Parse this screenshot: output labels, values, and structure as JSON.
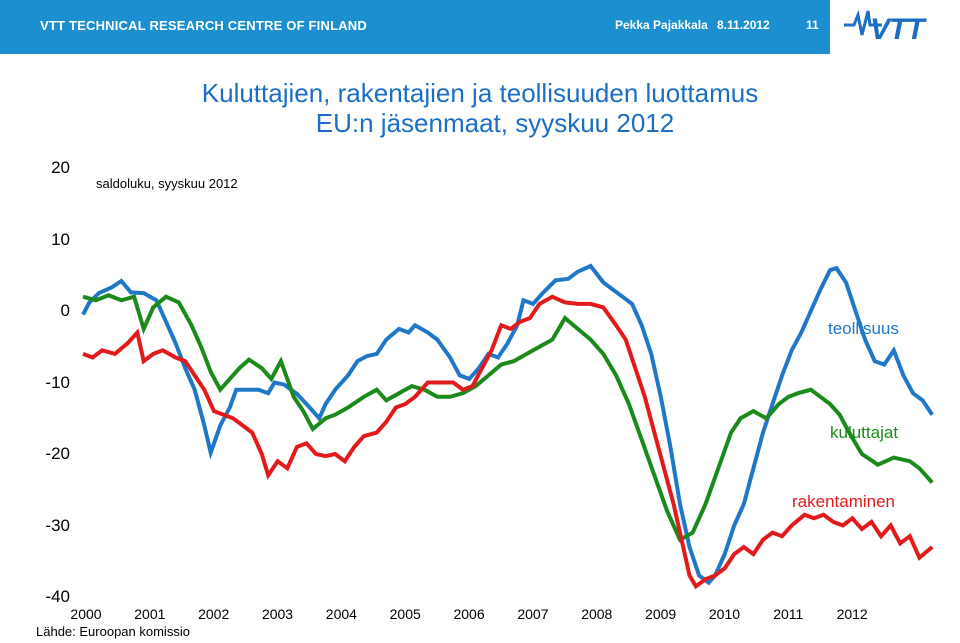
{
  "header": {
    "org": "VTT TECHNICAL RESEARCH CENTRE OF FINLAND",
    "author": "Pekka Pajakkala",
    "date": "8.11.2012",
    "slide_number": "11",
    "logo_text": "VTT",
    "bar_color": "#1b8fd0"
  },
  "title_line1": "Kuluttajien, rakentajien ja teollisuuden luottamus",
  "title_line2": "EU:n jäsenmaat, syyskuu 2012",
  "unit_label": "saldoluku, syyskuu 2012",
  "source": "Lähde: Euroopan komissio",
  "chart_data": {
    "type": "line",
    "title": "Kuluttajien, rakentajien ja teollisuuden luottamus EU:n jäsenmaat, syyskuu 2012",
    "ylabel": "saldoluku, syyskuu 2012",
    "ylim": [
      -40,
      20
    ],
    "yticks": [
      "20",
      "10",
      "0",
      "-10",
      "-20",
      "-30",
      "-40"
    ],
    "xticks": [
      "2000",
      "2001",
      "2002",
      "2003",
      "2004",
      "2005",
      "2006",
      "2007",
      "2008",
      "2009",
      "2010",
      "2011",
      "2012"
    ],
    "xlim": [
      2000,
      2013
    ],
    "grid": false,
    "series": [
      {
        "name": "teollisuus",
        "color": "#1f77c8",
        "points": [
          [
            2000.0,
            -0.5
          ],
          [
            2000.1,
            1.2
          ],
          [
            2000.25,
            2.5
          ],
          [
            2000.45,
            3.3
          ],
          [
            2000.6,
            4.2
          ],
          [
            2000.75,
            2.6
          ],
          [
            2000.95,
            2.5
          ],
          [
            2001.15,
            1.5
          ],
          [
            2001.3,
            -1.5
          ],
          [
            2001.45,
            -4.5
          ],
          [
            2001.6,
            -8
          ],
          [
            2001.75,
            -11
          ],
          [
            2001.9,
            -16
          ],
          [
            2002.0,
            -19.8
          ],
          [
            2002.15,
            -16
          ],
          [
            2002.3,
            -13.5
          ],
          [
            2002.4,
            -11
          ],
          [
            2002.6,
            -11
          ],
          [
            2002.75,
            -11
          ],
          [
            2002.9,
            -11.5
          ],
          [
            2003.0,
            -10
          ],
          [
            2003.15,
            -10.3
          ],
          [
            2003.35,
            -11.6
          ],
          [
            2003.55,
            -13.5
          ],
          [
            2003.7,
            -15
          ],
          [
            2003.8,
            -13
          ],
          [
            2003.95,
            -11
          ],
          [
            2004.15,
            -9
          ],
          [
            2004.3,
            -7
          ],
          [
            2004.45,
            -6.3
          ],
          [
            2004.6,
            -6
          ],
          [
            2004.75,
            -4
          ],
          [
            2004.95,
            -2.5
          ],
          [
            2005.1,
            -3
          ],
          [
            2005.2,
            -2
          ],
          [
            2005.4,
            -3
          ],
          [
            2005.55,
            -4
          ],
          [
            2005.75,
            -6.5
          ],
          [
            2005.9,
            -9
          ],
          [
            2006.05,
            -9.5
          ],
          [
            2006.2,
            -8
          ],
          [
            2006.35,
            -6
          ],
          [
            2006.5,
            -6.5
          ],
          [
            2006.65,
            -4.5
          ],
          [
            2006.8,
            -2
          ],
          [
            2006.9,
            1.5
          ],
          [
            2007.05,
            1
          ],
          [
            2007.2,
            2.5
          ],
          [
            2007.4,
            4.3
          ],
          [
            2007.6,
            4.5
          ],
          [
            2007.75,
            5.5
          ],
          [
            2007.95,
            6.3
          ],
          [
            2008.15,
            4
          ],
          [
            2008.3,
            3
          ],
          [
            2008.45,
            2
          ],
          [
            2008.6,
            1
          ],
          [
            2008.75,
            -2
          ],
          [
            2008.9,
            -6
          ],
          [
            2009.05,
            -12
          ],
          [
            2009.2,
            -19
          ],
          [
            2009.35,
            -27
          ],
          [
            2009.5,
            -33
          ],
          [
            2009.65,
            -37
          ],
          [
            2009.8,
            -38
          ],
          [
            2009.9,
            -37
          ],
          [
            2010.05,
            -34
          ],
          [
            2010.2,
            -30
          ],
          [
            2010.35,
            -27
          ],
          [
            2010.5,
            -22
          ],
          [
            2010.65,
            -17
          ],
          [
            2010.8,
            -13
          ],
          [
            2010.95,
            -9
          ],
          [
            2011.1,
            -5.5
          ],
          [
            2011.25,
            -3
          ],
          [
            2011.4,
            0
          ],
          [
            2011.55,
            3
          ],
          [
            2011.7,
            5.7
          ],
          [
            2011.8,
            6
          ],
          [
            2011.95,
            4
          ],
          [
            2012.1,
            0
          ],
          [
            2012.25,
            -4
          ],
          [
            2012.4,
            -7
          ],
          [
            2012.55,
            -7.5
          ],
          [
            2012.7,
            -5.5
          ],
          [
            2012.85,
            -9
          ],
          [
            2013.0,
            -11.5
          ],
          [
            2013.15,
            -12.5
          ],
          [
            2013.3,
            -14.5
          ]
        ]
      },
      {
        "name": "kuluttajat",
        "color": "#1a8a1a",
        "points": [
          [
            2000.0,
            2
          ],
          [
            2000.2,
            1.5
          ],
          [
            2000.4,
            2.2
          ],
          [
            2000.6,
            1.5
          ],
          [
            2000.8,
            2
          ],
          [
            2000.95,
            -2.5
          ],
          [
            2001.1,
            0.5
          ],
          [
            2001.3,
            2
          ],
          [
            2001.5,
            1.2
          ],
          [
            2001.7,
            -2
          ],
          [
            2001.85,
            -5
          ],
          [
            2002.0,
            -8.5
          ],
          [
            2002.15,
            -11
          ],
          [
            2002.3,
            -9.5
          ],
          [
            2002.45,
            -8
          ],
          [
            2002.6,
            -6.8
          ],
          [
            2002.8,
            -8
          ],
          [
            2002.95,
            -9.5
          ],
          [
            2003.1,
            -7
          ],
          [
            2003.3,
            -12
          ],
          [
            2003.45,
            -14
          ],
          [
            2003.6,
            -16.5
          ],
          [
            2003.8,
            -15
          ],
          [
            2003.95,
            -14.5
          ],
          [
            2004.15,
            -13.5
          ],
          [
            2004.4,
            -12
          ],
          [
            2004.6,
            -11
          ],
          [
            2004.75,
            -12.5
          ],
          [
            2004.95,
            -11.5
          ],
          [
            2005.15,
            -10.5
          ],
          [
            2005.35,
            -11
          ],
          [
            2005.55,
            -12
          ],
          [
            2005.75,
            -12
          ],
          [
            2005.95,
            -11.5
          ],
          [
            2006.15,
            -10.5
          ],
          [
            2006.35,
            -9
          ],
          [
            2006.55,
            -7.5
          ],
          [
            2006.75,
            -7
          ],
          [
            2006.95,
            -6
          ],
          [
            2007.15,
            -5
          ],
          [
            2007.35,
            -4
          ],
          [
            2007.55,
            -1
          ],
          [
            2007.75,
            -2.5
          ],
          [
            2007.95,
            -4
          ],
          [
            2008.15,
            -6
          ],
          [
            2008.35,
            -9
          ],
          [
            2008.55,
            -13
          ],
          [
            2008.75,
            -18
          ],
          [
            2008.95,
            -23
          ],
          [
            2009.15,
            -28
          ],
          [
            2009.35,
            -32
          ],
          [
            2009.55,
            -31
          ],
          [
            2009.75,
            -27
          ],
          [
            2009.95,
            -22
          ],
          [
            2010.15,
            -17
          ],
          [
            2010.3,
            -15
          ],
          [
            2010.5,
            -14
          ],
          [
            2010.7,
            -15
          ],
          [
            2010.9,
            -13
          ],
          [
            2011.05,
            -12
          ],
          [
            2011.2,
            -11.5
          ],
          [
            2011.4,
            -11
          ],
          [
            2011.55,
            -12
          ],
          [
            2011.7,
            -13
          ],
          [
            2011.85,
            -14.5
          ],
          [
            2012.0,
            -17
          ],
          [
            2012.2,
            -20
          ],
          [
            2012.45,
            -21.5
          ],
          [
            2012.7,
            -20.5
          ],
          [
            2012.95,
            -21
          ],
          [
            2013.1,
            -22
          ],
          [
            2013.3,
            -24
          ]
        ]
      },
      {
        "name": "rakentaminen",
        "color": "#e31a1c",
        "points": [
          [
            2000.0,
            -6
          ],
          [
            2000.15,
            -6.5
          ],
          [
            2000.3,
            -5.5
          ],
          [
            2000.5,
            -6
          ],
          [
            2000.7,
            -4.5
          ],
          [
            2000.85,
            -3
          ],
          [
            2000.95,
            -7
          ],
          [
            2001.1,
            -6
          ],
          [
            2001.25,
            -5.5
          ],
          [
            2001.45,
            -6.5
          ],
          [
            2001.6,
            -7
          ],
          [
            2001.75,
            -9
          ],
          [
            2001.9,
            -11
          ],
          [
            2002.05,
            -14
          ],
          [
            2002.2,
            -14.5
          ],
          [
            2002.35,
            -15
          ],
          [
            2002.5,
            -16
          ],
          [
            2002.65,
            -17
          ],
          [
            2002.8,
            -20
          ],
          [
            2002.9,
            -23
          ],
          [
            2003.05,
            -21
          ],
          [
            2003.2,
            -22
          ],
          [
            2003.35,
            -19
          ],
          [
            2003.5,
            -18.5
          ],
          [
            2003.65,
            -20
          ],
          [
            2003.8,
            -20.3
          ],
          [
            2003.95,
            -20
          ],
          [
            2004.1,
            -21
          ],
          [
            2004.25,
            -19
          ],
          [
            2004.4,
            -17.5
          ],
          [
            2004.6,
            -17
          ],
          [
            2004.75,
            -15.5
          ],
          [
            2004.9,
            -13.5
          ],
          [
            2005.05,
            -13
          ],
          [
            2005.2,
            -12
          ],
          [
            2005.4,
            -10
          ],
          [
            2005.6,
            -10
          ],
          [
            2005.8,
            -10
          ],
          [
            2005.95,
            -11
          ],
          [
            2006.1,
            -10.5
          ],
          [
            2006.25,
            -8
          ],
          [
            2006.4,
            -5.5
          ],
          [
            2006.55,
            -2
          ],
          [
            2006.7,
            -2.5
          ],
          [
            2006.85,
            -1.5
          ],
          [
            2007.0,
            -1
          ],
          [
            2007.15,
            1
          ],
          [
            2007.35,
            2
          ],
          [
            2007.55,
            1.2
          ],
          [
            2007.75,
            1
          ],
          [
            2007.95,
            1
          ],
          [
            2008.15,
            0.5
          ],
          [
            2008.35,
            -2
          ],
          [
            2008.5,
            -4
          ],
          [
            2008.65,
            -8
          ],
          [
            2008.8,
            -12
          ],
          [
            2008.95,
            -17
          ],
          [
            2009.1,
            -22
          ],
          [
            2009.25,
            -27
          ],
          [
            2009.4,
            -33
          ],
          [
            2009.5,
            -37
          ],
          [
            2009.6,
            -38.5
          ],
          [
            2009.75,
            -37.5
          ],
          [
            2009.9,
            -37
          ],
          [
            2010.05,
            -36
          ],
          [
            2010.2,
            -34
          ],
          [
            2010.35,
            -33
          ],
          [
            2010.5,
            -34
          ],
          [
            2010.65,
            -32
          ],
          [
            2010.8,
            -31
          ],
          [
            2010.95,
            -31.5
          ],
          [
            2011.1,
            -30
          ],
          [
            2011.3,
            -28.5
          ],
          [
            2011.45,
            -29
          ],
          [
            2011.6,
            -28.5
          ],
          [
            2011.75,
            -29.5
          ],
          [
            2011.9,
            -30
          ],
          [
            2012.05,
            -29
          ],
          [
            2012.2,
            -30.5
          ],
          [
            2012.35,
            -29.5
          ],
          [
            2012.5,
            -31.5
          ],
          [
            2012.65,
            -30
          ],
          [
            2012.8,
            -32.5
          ],
          [
            2012.95,
            -31.5
          ],
          [
            2013.1,
            -34.5
          ],
          [
            2013.3,
            -33
          ]
        ]
      }
    ]
  }
}
